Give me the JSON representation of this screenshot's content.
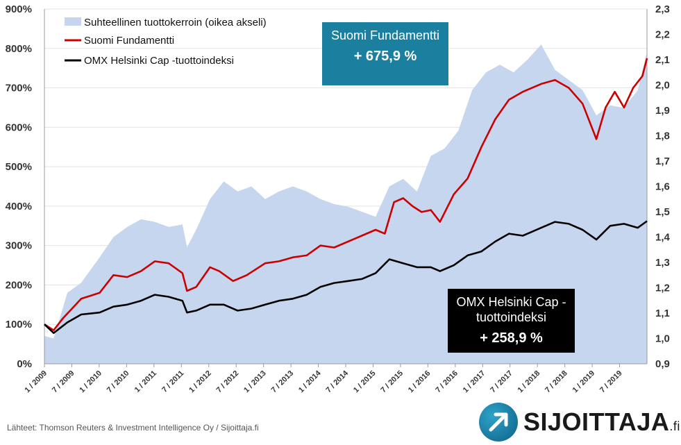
{
  "chart_data": {
    "type": "line",
    "title": "",
    "xlabel": "",
    "ylabel": "",
    "y_left": {
      "ticks": [
        "0%",
        "100%",
        "200%",
        "300%",
        "400%",
        "500%",
        "600%",
        "700%",
        "800%",
        "900%"
      ],
      "range": [
        0,
        900
      ]
    },
    "y_right": {
      "ticks": [
        "0,9",
        "1,0",
        "1,1",
        "1,2",
        "1,3",
        "1,4",
        "1,5",
        "1,6",
        "1,7",
        "1,8",
        "1,9",
        "2,0",
        "2,1",
        "2,2",
        "2,3"
      ],
      "range": [
        0.9,
        2.3
      ]
    },
    "x_range": [
      "2009-01",
      "2019-12"
    ],
    "x_ticks": [
      "1 / 2009",
      "7 / 2009",
      "1 / 2010",
      "7 / 2010",
      "1 / 2011",
      "7 / 2011",
      "1 / 2012",
      "7 / 2012",
      "1 / 2013",
      "7 / 2013",
      "1 / 2014",
      "7 / 2014",
      "1 / 2015",
      "7 / 2015",
      "1 / 2016",
      "7 / 2016",
      "1 / 2017",
      "7 / 2017",
      "1 / 2018",
      "7 / 2018",
      "1 / 2019",
      "7 / 2019"
    ],
    "grid": true,
    "legend_position": "top-left",
    "series": [
      {
        "name": "Suhteellinen tuottokerroin (oikea akseli)",
        "type": "area",
        "axis": "right",
        "color": "#c5d6ee",
        "points": [
          [
            "2009-01",
            1.01
          ],
          [
            "2009-03",
            1.0
          ],
          [
            "2009-06",
            1.18
          ],
          [
            "2009-09",
            1.22
          ],
          [
            "2010-01",
            1.32
          ],
          [
            "2010-04",
            1.4
          ],
          [
            "2010-07",
            1.44
          ],
          [
            "2010-10",
            1.47
          ],
          [
            "2011-01",
            1.46
          ],
          [
            "2011-04",
            1.44
          ],
          [
            "2011-07",
            1.45
          ],
          [
            "2011-08",
            1.36
          ],
          [
            "2011-10",
            1.43
          ],
          [
            "2012-01",
            1.55
          ],
          [
            "2012-04",
            1.62
          ],
          [
            "2012-07",
            1.58
          ],
          [
            "2012-10",
            1.6
          ],
          [
            "2013-01",
            1.55
          ],
          [
            "2013-04",
            1.58
          ],
          [
            "2013-07",
            1.6
          ],
          [
            "2013-10",
            1.58
          ],
          [
            "2014-01",
            1.55
          ],
          [
            "2014-04",
            1.53
          ],
          [
            "2014-07",
            1.52
          ],
          [
            "2014-10",
            1.5
          ],
          [
            "2015-01",
            1.48
          ],
          [
            "2015-04",
            1.6
          ],
          [
            "2015-07",
            1.63
          ],
          [
            "2015-10",
            1.58
          ],
          [
            "2016-01",
            1.72
          ],
          [
            "2016-04",
            1.75
          ],
          [
            "2016-07",
            1.82
          ],
          [
            "2016-10",
            1.98
          ],
          [
            "2017-01",
            2.05
          ],
          [
            "2017-04",
            2.08
          ],
          [
            "2017-07",
            2.05
          ],
          [
            "2017-10",
            2.1
          ],
          [
            "2018-01",
            2.16
          ],
          [
            "2018-04",
            2.06
          ],
          [
            "2018-07",
            2.02
          ],
          [
            "2018-10",
            1.98
          ],
          [
            "2019-01",
            1.88
          ],
          [
            "2019-04",
            1.92
          ],
          [
            "2019-07",
            1.91
          ],
          [
            "2019-10",
            1.98
          ],
          [
            "2019-12",
            2.13
          ]
        ]
      },
      {
        "name": "Suomi Fundamentti",
        "type": "line",
        "axis": "left",
        "color": "#cc0000",
        "points": [
          [
            "2009-01",
            100
          ],
          [
            "2009-03",
            85
          ],
          [
            "2009-05",
            115
          ],
          [
            "2009-07",
            140
          ],
          [
            "2009-09",
            165
          ],
          [
            "2010-01",
            180
          ],
          [
            "2010-04",
            225
          ],
          [
            "2010-07",
            220
          ],
          [
            "2010-10",
            235
          ],
          [
            "2011-01",
            260
          ],
          [
            "2011-04",
            255
          ],
          [
            "2011-07",
            230
          ],
          [
            "2011-08",
            185
          ],
          [
            "2011-10",
            195
          ],
          [
            "2012-01",
            245
          ],
          [
            "2012-03",
            235
          ],
          [
            "2012-06",
            210
          ],
          [
            "2012-09",
            225
          ],
          [
            "2013-01",
            255
          ],
          [
            "2013-04",
            260
          ],
          [
            "2013-07",
            270
          ],
          [
            "2013-10",
            275
          ],
          [
            "2014-01",
            300
          ],
          [
            "2014-04",
            295
          ],
          [
            "2014-07",
            310
          ],
          [
            "2014-10",
            325
          ],
          [
            "2015-01",
            340
          ],
          [
            "2015-03",
            330
          ],
          [
            "2015-05",
            410
          ],
          [
            "2015-07",
            420
          ],
          [
            "2015-09",
            400
          ],
          [
            "2015-11",
            385
          ],
          [
            "2016-01",
            390
          ],
          [
            "2016-03",
            360
          ],
          [
            "2016-06",
            430
          ],
          [
            "2016-09",
            470
          ],
          [
            "2016-12",
            550
          ],
          [
            "2017-03",
            620
          ],
          [
            "2017-06",
            670
          ],
          [
            "2017-09",
            690
          ],
          [
            "2018-01",
            710
          ],
          [
            "2018-04",
            720
          ],
          [
            "2018-07",
            700
          ],
          [
            "2018-10",
            660
          ],
          [
            "2019-01",
            570
          ],
          [
            "2019-03",
            650
          ],
          [
            "2019-05",
            690
          ],
          [
            "2019-07",
            650
          ],
          [
            "2019-09",
            700
          ],
          [
            "2019-11",
            730
          ],
          [
            "2019-12",
            775
          ]
        ]
      },
      {
        "name": "OMX Helsinki Cap -tuottoindeksi",
        "type": "line",
        "axis": "left",
        "color": "#000000",
        "points": [
          [
            "2009-01",
            100
          ],
          [
            "2009-03",
            78
          ],
          [
            "2009-06",
            105
          ],
          [
            "2009-09",
            125
          ],
          [
            "2010-01",
            130
          ],
          [
            "2010-04",
            145
          ],
          [
            "2010-07",
            150
          ],
          [
            "2010-10",
            160
          ],
          [
            "2011-01",
            175
          ],
          [
            "2011-04",
            170
          ],
          [
            "2011-07",
            160
          ],
          [
            "2011-08",
            130
          ],
          [
            "2011-10",
            135
          ],
          [
            "2012-01",
            150
          ],
          [
            "2012-04",
            150
          ],
          [
            "2012-07",
            135
          ],
          [
            "2012-10",
            140
          ],
          [
            "2013-01",
            150
          ],
          [
            "2013-04",
            160
          ],
          [
            "2013-07",
            165
          ],
          [
            "2013-10",
            175
          ],
          [
            "2014-01",
            195
          ],
          [
            "2014-04",
            205
          ],
          [
            "2014-07",
            210
          ],
          [
            "2014-10",
            215
          ],
          [
            "2015-01",
            230
          ],
          [
            "2015-04",
            265
          ],
          [
            "2015-07",
            255
          ],
          [
            "2015-10",
            245
          ],
          [
            "2016-01",
            245
          ],
          [
            "2016-03",
            235
          ],
          [
            "2016-06",
            250
          ],
          [
            "2016-09",
            275
          ],
          [
            "2016-12",
            285
          ],
          [
            "2017-03",
            310
          ],
          [
            "2017-06",
            330
          ],
          [
            "2017-09",
            325
          ],
          [
            "2018-01",
            345
          ],
          [
            "2018-04",
            360
          ],
          [
            "2018-07",
            355
          ],
          [
            "2018-10",
            340
          ],
          [
            "2019-01",
            315
          ],
          [
            "2019-04",
            350
          ],
          [
            "2019-07",
            355
          ],
          [
            "2019-10",
            345
          ],
          [
            "2019-12",
            362
          ]
        ]
      }
    ]
  },
  "annotations": {
    "suomi": {
      "name": "Suomi Fundamentti",
      "value": "+ 675,9 %",
      "color": "#1b7fa0"
    },
    "omx": {
      "name": "OMX Helsinki Cap - tuottoindeksi",
      "value": "+ 258,9 %",
      "color": "#000000"
    }
  },
  "source": "Lähteet: Thomson Reuters & Investment Intelligence Oy / Sijoittaja.fi",
  "logo": {
    "text": "SIJOITTAJA",
    "suffix": ".fi",
    "icon": "arrow-up-right-icon"
  }
}
